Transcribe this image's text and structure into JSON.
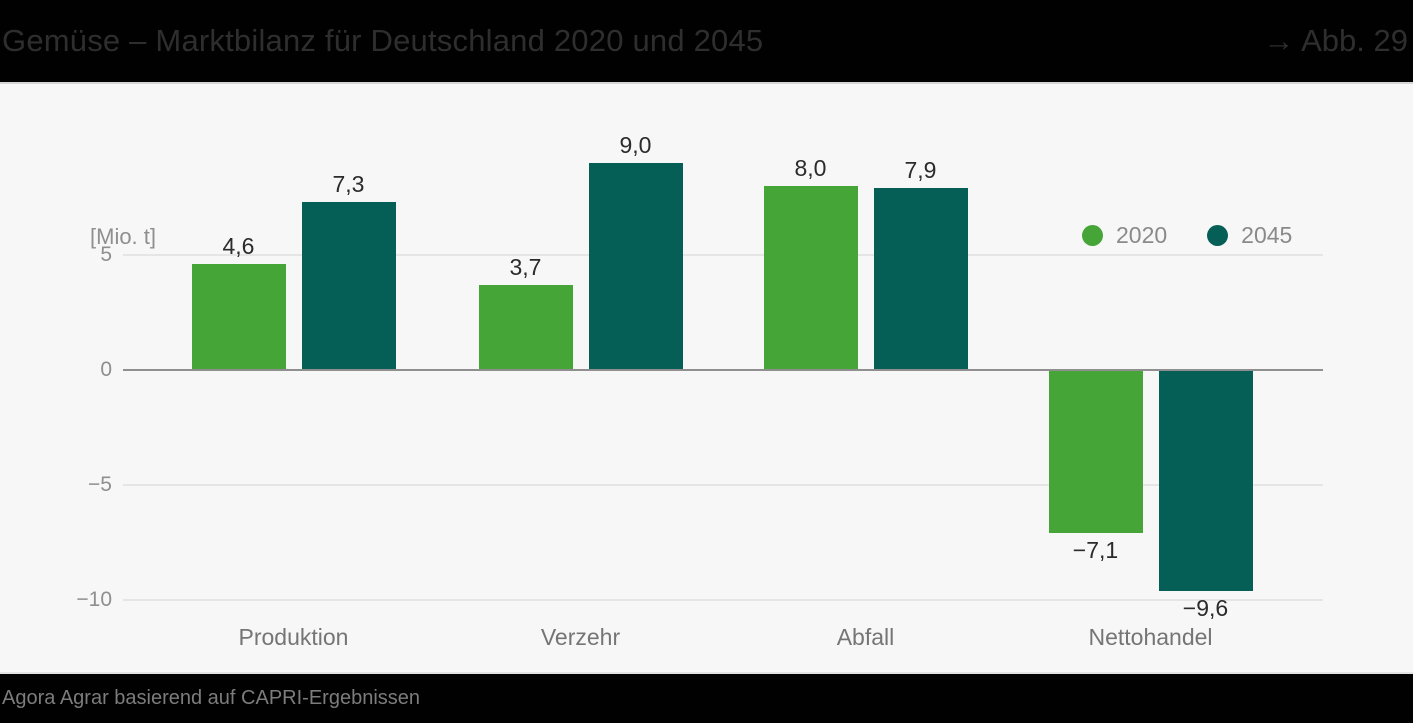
{
  "header": {
    "title": "Gemüse – Marktbilanz für Deutschland 2020 und 2045",
    "figure_ref": "→ Abb. 29"
  },
  "footer": {
    "source": "Agora Agrar basierend auf CAPRI-Ergebnissen"
  },
  "chart_data": {
    "type": "bar",
    "title": "Gemüse – Marktbilanz für Deutschland 2020 und 2045",
    "unit_label": "[Mio. t]",
    "xlabel": "",
    "ylabel": "[Mio. t]",
    "categories": [
      "Produktion",
      "Verzehr",
      "Abfall",
      "Nettohandel"
    ],
    "series": [
      {
        "name": "2020",
        "color": "#45a536",
        "values": [
          4.6,
          3.7,
          8.0,
          -7.1
        ],
        "value_labels": [
          "4,6",
          "3,7",
          "8,0",
          "−7,1"
        ]
      },
      {
        "name": "2045",
        "color": "#065f56",
        "values": [
          7.3,
          9.0,
          7.9,
          -9.6
        ],
        "value_labels": [
          "7,3",
          "9,0",
          "7,9",
          "−9,6"
        ]
      }
    ],
    "yticks": [
      {
        "value": 5,
        "label": "5"
      },
      {
        "value": 0,
        "label": "0"
      },
      {
        "value": -5,
        "label": "−5"
      },
      {
        "value": -10,
        "label": "−10"
      }
    ],
    "ylim": [
      -11,
      10
    ],
    "grid": "horizontal",
    "legend_position": "top-right"
  }
}
